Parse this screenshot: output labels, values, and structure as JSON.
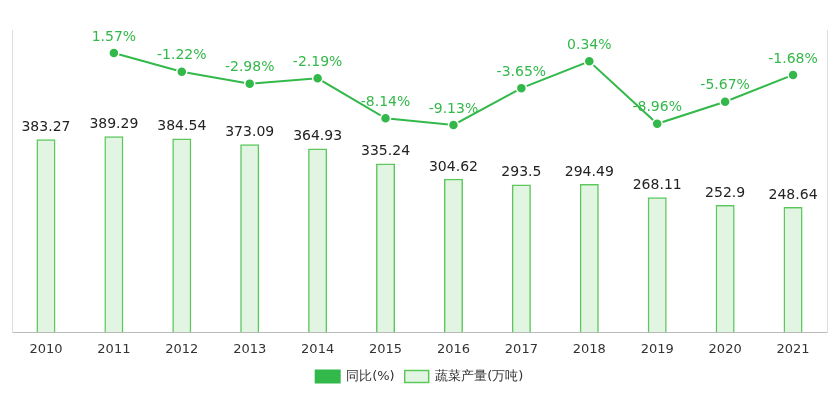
{
  "chart_data": {
    "type": "bar",
    "categories": [
      "2010",
      "2011",
      "2012",
      "2013",
      "2014",
      "2015",
      "2016",
      "2017",
      "2018",
      "2019",
      "2020",
      "2021"
    ],
    "series": [
      {
        "name": "蔬菜产量(万吨)",
        "type": "bar",
        "color": "#5cc85c",
        "values": [
          383.27,
          389.29,
          384.54,
          373.09,
          364.93,
          335.24,
          304.62,
          293.5,
          294.49,
          268.11,
          252.9,
          248.64
        ]
      },
      {
        "name": "同比(%)",
        "type": "line",
        "axis": "y2",
        "color": "#33b84a",
        "marker": "circle",
        "values": [
          null,
          1.57,
          -1.22,
          -2.98,
          -2.19,
          -8.14,
          -9.13,
          -3.65,
          0.34,
          -8.96,
          -5.67,
          -1.68
        ],
        "value_labels": [
          null,
          "1.57%",
          "-1.22%",
          "-2.98%",
          "-2.19%",
          "-8.14%",
          "-9.13%",
          "-3.65%",
          "0.34%",
          "-8.96%",
          "-5.67%",
          "-1.68%"
        ]
      }
    ],
    "ylim": [
      0,
      600
    ],
    "y2lim": [
      -40,
      5
    ],
    "tick_labels": "x",
    "grid": false,
    "legend": "bottom",
    "data_labels": true
  }
}
